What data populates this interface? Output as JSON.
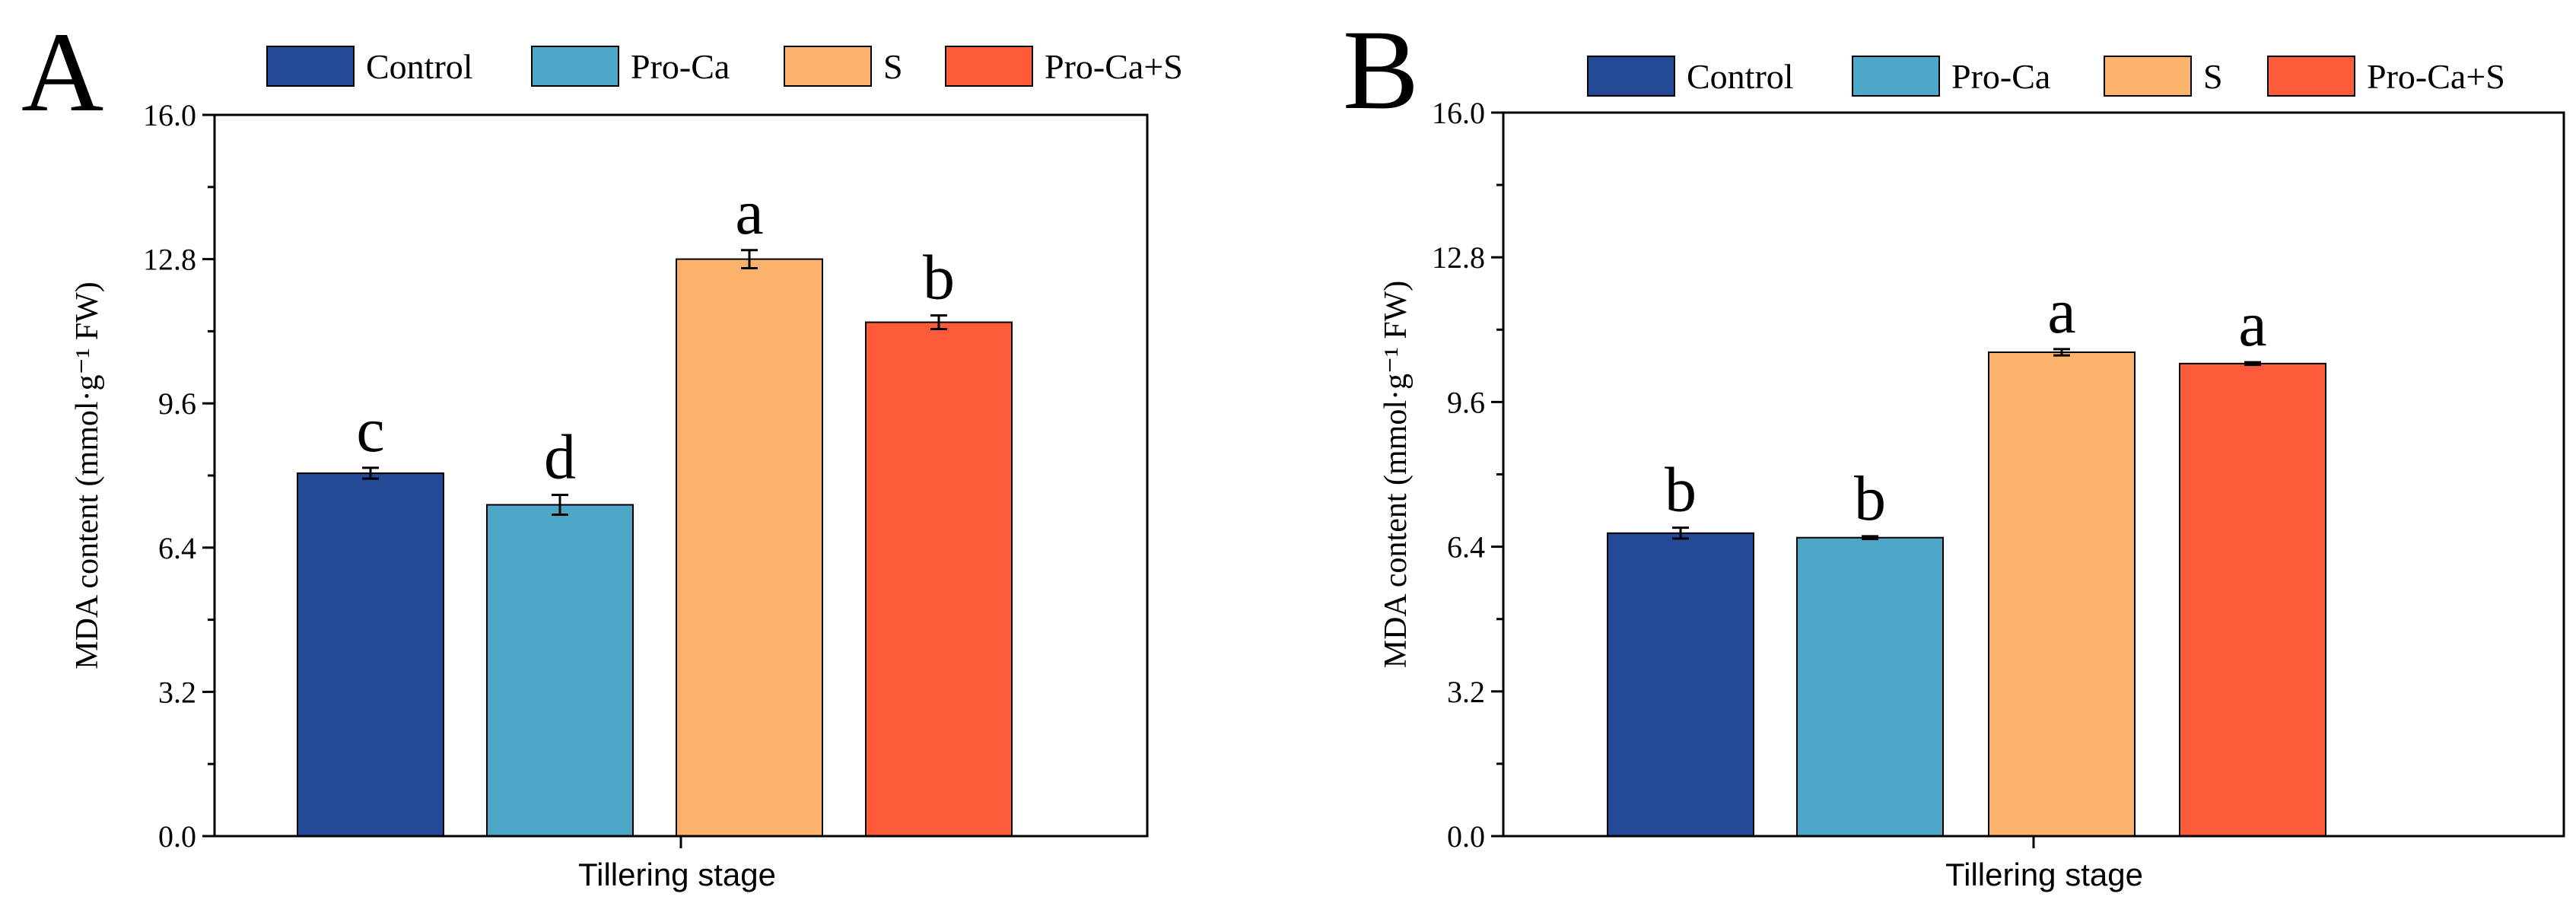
{
  "chart_data": [
    {
      "panel": "A",
      "type": "bar",
      "categories": [
        "Control",
        "Pro-Ca",
        "S",
        "Pro-Ca+S"
      ],
      "values": [
        8.05,
        7.35,
        12.8,
        11.4
      ],
      "errors": [
        0.12,
        0.22,
        0.2,
        0.15
      ],
      "significance": [
        "c",
        "d",
        "a",
        "b"
      ],
      "colors": [
        "#244a97",
        "#4ea6c9",
        "#fdb36c",
        "#fd5b39"
      ],
      "xlabel": "Tillering stage",
      "ylabel": "MDA content (mmol·g⁻¹ FW)",
      "ylim": [
        0,
        16
      ],
      "yticks": [
        "0.0",
        "3.2",
        "6.4",
        "9.6",
        "12.8",
        "16.0"
      ],
      "legend": [
        "Control",
        "Pro-Ca",
        "S",
        "Pro-Ca+S"
      ],
      "legend_position": "top"
    },
    {
      "panel": "B",
      "type": "bar",
      "categories": [
        "Control",
        "Pro-Ca",
        "S",
        "Pro-Ca+S"
      ],
      "values": [
        6.7,
        6.6,
        10.7,
        10.45
      ],
      "errors": [
        0.12,
        0.03,
        0.07,
        0.03
      ],
      "significance": [
        "b",
        "b",
        "a",
        "a"
      ],
      "colors": [
        "#244a97",
        "#4ea6c9",
        "#fdb36c",
        "#fd5b39"
      ],
      "xlabel": "Tillering stage",
      "ylabel": "MDA content (mmol·g⁻¹ FW)",
      "ylim": [
        0,
        16
      ],
      "yticks": [
        "0.0",
        "3.2",
        "6.4",
        "9.6",
        "12.8",
        "16.0"
      ],
      "legend": [
        "Control",
        "Pro-Ca",
        "S",
        "Pro-Ca+S"
      ],
      "legend_position": "top"
    }
  ]
}
